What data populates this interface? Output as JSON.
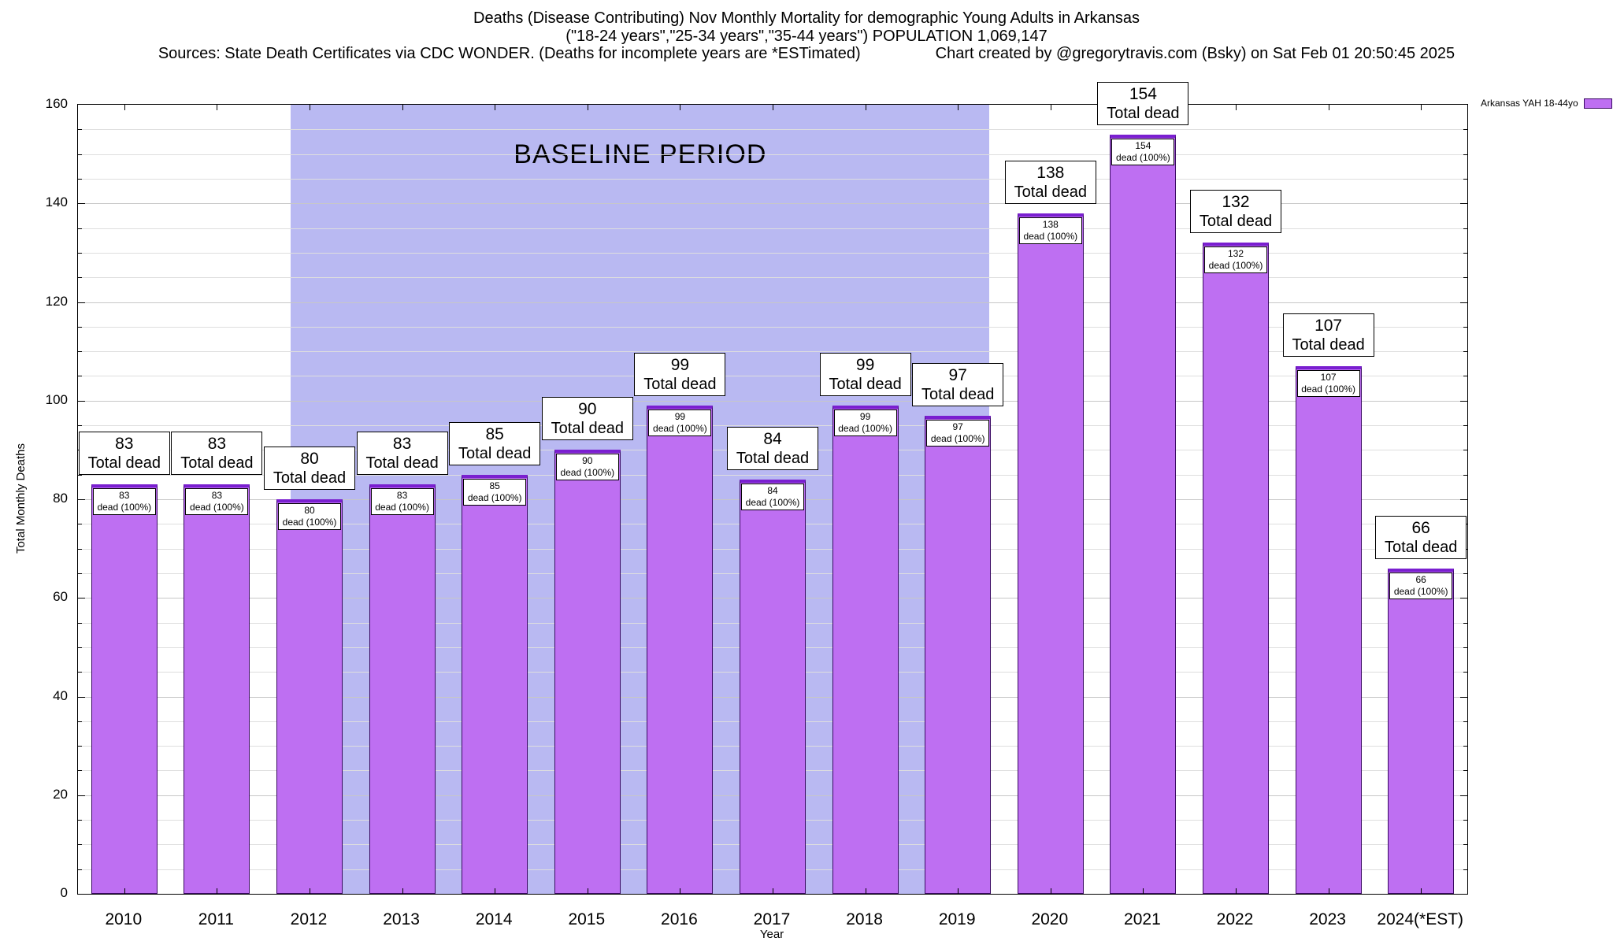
{
  "header": {
    "title_line1": "Deaths (Disease Contributing) Nov Monthly Mortality for demographic Young Adults in Arkansas",
    "title_line2": "(\"18-24 years\",\"25-34 years\",\"35-44 years\") POPULATION 1,069,147",
    "sources_line": "Sources: State Death Certificates via CDC WONDER. (Deaths for incomplete years are *ESTimated)",
    "credit_line": "Chart created by @gregorytravis.com (Bsky) on Sat Feb 01 20:50:45 2025"
  },
  "legend": {
    "label": "Arkansas YAH 18-44yo",
    "swatch_color": "#be6ff2"
  },
  "chart_data": {
    "type": "bar",
    "title": "Deaths (Disease Contributing) Nov Monthly Mortality for demographic Young Adults in Arkansas",
    "subtitle": "(\"18-24 years\",\"25-34 years\",\"35-44 years\") POPULATION 1,069,147",
    "categories": [
      "2010",
      "2011",
      "2012",
      "2013",
      "2014",
      "2015",
      "2016",
      "2017",
      "2018",
      "2019",
      "2020",
      "2021",
      "2022",
      "2023",
      "2024(*EST)"
    ],
    "values": [
      83,
      83,
      80,
      83,
      85,
      90,
      99,
      84,
      99,
      97,
      138,
      154,
      132,
      107,
      66
    ],
    "bar_top_label_suffix": "Total dead",
    "bar_inner_label_suffix": "dead (100%)",
    "xlabel": "Year",
    "ylabel": "Total Monthly Deaths",
    "ylim": [
      0,
      160
    ],
    "ytick_step": 20,
    "minor_grid_step": 5,
    "grid": true,
    "legend_position": "top-right-outside",
    "baseline_period": {
      "label": "BASELINE PERIOD",
      "start_category": "2012",
      "end_category": "2019",
      "color": "#b9b9f2"
    },
    "bar_color": "#be6ff2",
    "bar_edge_color": "#3a0a63",
    "bar_top_color": "#7a1fd0"
  }
}
